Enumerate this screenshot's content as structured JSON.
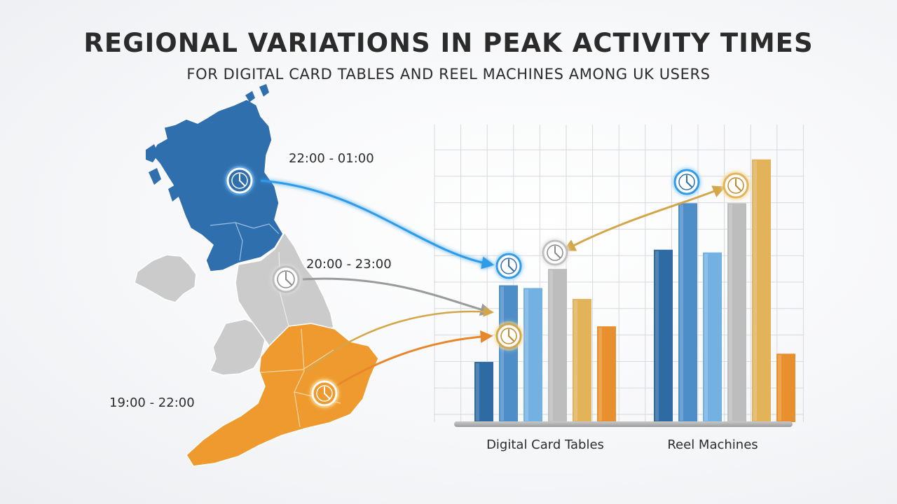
{
  "header": {
    "title": "REGIONAL VARIATIONS IN PEAK ACTIVITY TIMES",
    "subtitle": "FOR DIGITAL CARD TABLES AND REEL MACHINES AMONG UK USERS"
  },
  "regions": [
    {
      "name": "scotland",
      "time_window": "22:00 - 01:00",
      "color": "#2f6fae"
    },
    {
      "name": "northern-england",
      "time_window": "20:00 - 23:00",
      "color": "#bdbdbd"
    },
    {
      "name": "southern-england",
      "time_window": "19:00 - 22:00",
      "color": "#ee9a2e"
    }
  ],
  "colors": {
    "blue_dark": "#2e6aa3",
    "blue_mid": "#4d8ec9",
    "blue_light": "#74b1e3",
    "grey": "#bdbdbd",
    "gold": "#e2b359",
    "orange": "#e8902e",
    "map_grey": "#c9c9c9",
    "map_orange": "#ee9a2e",
    "map_blue": "#2f6fae"
  },
  "chart_data": {
    "type": "bar",
    "categories": [
      "Digital Card Tables",
      "Reel Machines"
    ],
    "series": [
      {
        "values": [
          22,
          63
        ],
        "color": "#2e6aa3"
      },
      {
        "values": [
          50,
          80
        ],
        "color": "#4d8ec9"
      },
      {
        "values": [
          49,
          62
        ],
        "color": "#74b1e3"
      },
      {
        "values": [
          56,
          80
        ],
        "color": "#bdbdbd"
      },
      {
        "values": [
          45,
          96
        ],
        "color": "#e2b359"
      },
      {
        "values": [
          35,
          25
        ],
        "color": "#e8902e"
      }
    ],
    "ylim": [
      0,
      110
    ],
    "grid": true
  }
}
